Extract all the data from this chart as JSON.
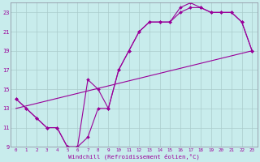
{
  "xlabel": "Windchill (Refroidissement éolien,°C)",
  "bg_color": "#c8ecec",
  "line_color": "#990099",
  "grid_color": "#aacccc",
  "xmin": -0.5,
  "xmax": 23.5,
  "ymin": 9,
  "ymax": 24,
  "xticks": [
    0,
    1,
    2,
    3,
    4,
    5,
    6,
    7,
    8,
    9,
    10,
    11,
    12,
    13,
    14,
    15,
    16,
    17,
    18,
    19,
    20,
    21,
    22,
    23
  ],
  "yticks": [
    9,
    11,
    13,
    15,
    17,
    19,
    21,
    23
  ],
  "line1_x": [
    0,
    1,
    2,
    3,
    4,
    5,
    6,
    7,
    8,
    9,
    10,
    11,
    12,
    13,
    14,
    15,
    16,
    17,
    18,
    19,
    20,
    21,
    22,
    23
  ],
  "line1_y": [
    14,
    13,
    12,
    11,
    11,
    9,
    9,
    10,
    13,
    13,
    17,
    19,
    21,
    22,
    22,
    22,
    23,
    23.5,
    23.5,
    23,
    23,
    23,
    22,
    19
  ],
  "line2_x": [
    0,
    1,
    2,
    3,
    4,
    5,
    6,
    7,
    8,
    9,
    10,
    11,
    12,
    13,
    14,
    15,
    16,
    17,
    18,
    19,
    20,
    21,
    22,
    23
  ],
  "line2_y": [
    14,
    13,
    12,
    11,
    11,
    9,
    9,
    16,
    15,
    13,
    17,
    19,
    21,
    22,
    22,
    22,
    23.5,
    24,
    23.5,
    23,
    23,
    23,
    22,
    19
  ],
  "line3_x": [
    0,
    23
  ],
  "line3_y": [
    13,
    19
  ]
}
